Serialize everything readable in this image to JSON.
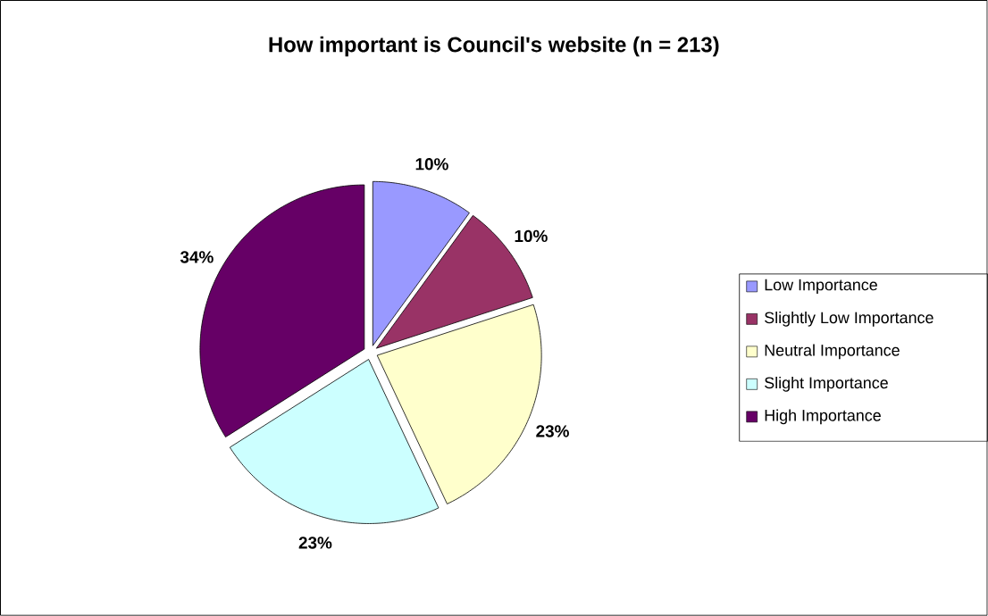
{
  "chart_data": {
    "type": "pie",
    "title": "How important is Council's website (n = 213)",
    "categories": [
      "Low Importance",
      "Slightly Low Importance",
      "Neutral Importance",
      "Slight Importance",
      "High Importance"
    ],
    "values": [
      10,
      10,
      23,
      23,
      34
    ],
    "colors": [
      "#9999ff",
      "#993366",
      "#ffffcc",
      "#ccffff",
      "#660066"
    ],
    "value_labels": [
      "10%",
      "10%",
      "23%",
      "23%",
      "34%"
    ],
    "legend": "right"
  }
}
